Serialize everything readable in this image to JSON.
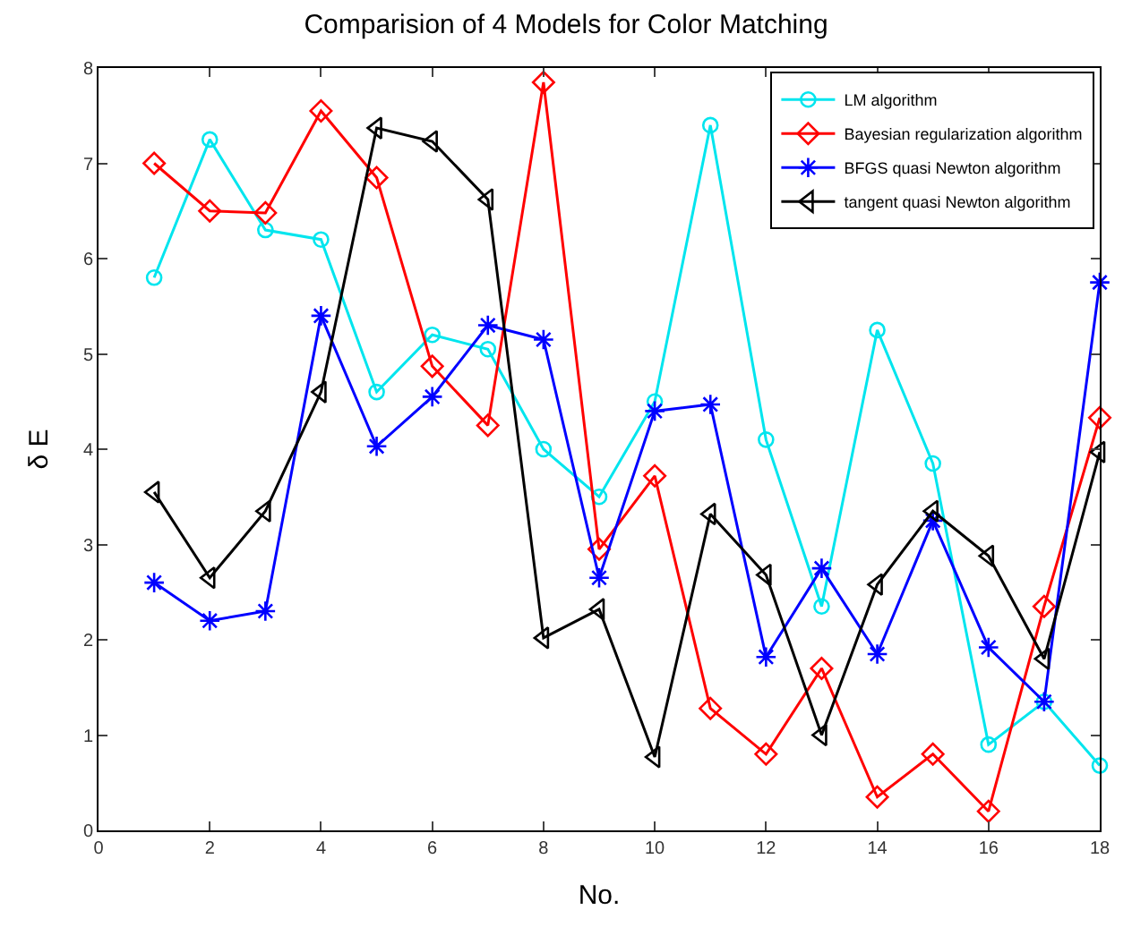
{
  "chart_data": {
    "type": "line",
    "title": "Comparision of 4 Models for Color Matching",
    "xlabel": "No.",
    "ylabel": "δ E",
    "x": [
      1,
      2,
      3,
      4,
      5,
      6,
      7,
      8,
      9,
      10,
      11,
      12,
      13,
      14,
      15,
      16,
      17,
      18
    ],
    "xlim": [
      0,
      18
    ],
    "xticks": [
      0,
      2,
      4,
      6,
      8,
      10,
      12,
      14,
      16,
      18
    ],
    "ylim": [
      0,
      8
    ],
    "yticks": [
      0,
      1,
      2,
      3,
      4,
      5,
      6,
      7,
      8
    ],
    "legend": "top right",
    "line_style": "solid",
    "series": [
      {
        "name": "LM algorithm",
        "color": "#00e5ee",
        "marker": "circle",
        "values": [
          5.8,
          7.25,
          6.3,
          6.2,
          4.6,
          5.2,
          5.05,
          4.0,
          3.5,
          4.5,
          7.4,
          4.1,
          2.35,
          5.25,
          3.85,
          0.9,
          1.35,
          0.68
        ]
      },
      {
        "name": "Bayesian regularization algorithm",
        "color": "#ff0000",
        "marker": "diamond",
        "values": [
          7.0,
          6.5,
          6.48,
          7.55,
          6.85,
          4.87,
          4.25,
          7.85,
          2.95,
          3.72,
          1.28,
          0.8,
          1.7,
          0.35,
          0.8,
          0.2,
          2.35,
          4.33
        ]
      },
      {
        "name": "BFGS quasi Newton algorithm",
        "color": "#0000ff",
        "marker": "cross",
        "values": [
          2.6,
          2.2,
          2.3,
          5.4,
          4.03,
          4.55,
          5.3,
          5.15,
          2.65,
          4.4,
          4.47,
          1.82,
          2.75,
          1.85,
          3.25,
          1.92,
          1.35,
          5.75
        ]
      },
      {
        "name": "tangent quasi Newton algorithm",
        "color": "#000000",
        "marker": "triangle",
        "values": [
          3.55,
          2.65,
          3.35,
          4.6,
          7.37,
          7.23,
          6.62,
          2.02,
          2.32,
          0.77,
          3.32,
          2.68,
          1.0,
          2.58,
          3.35,
          2.88,
          1.8,
          3.97
        ]
      }
    ]
  }
}
